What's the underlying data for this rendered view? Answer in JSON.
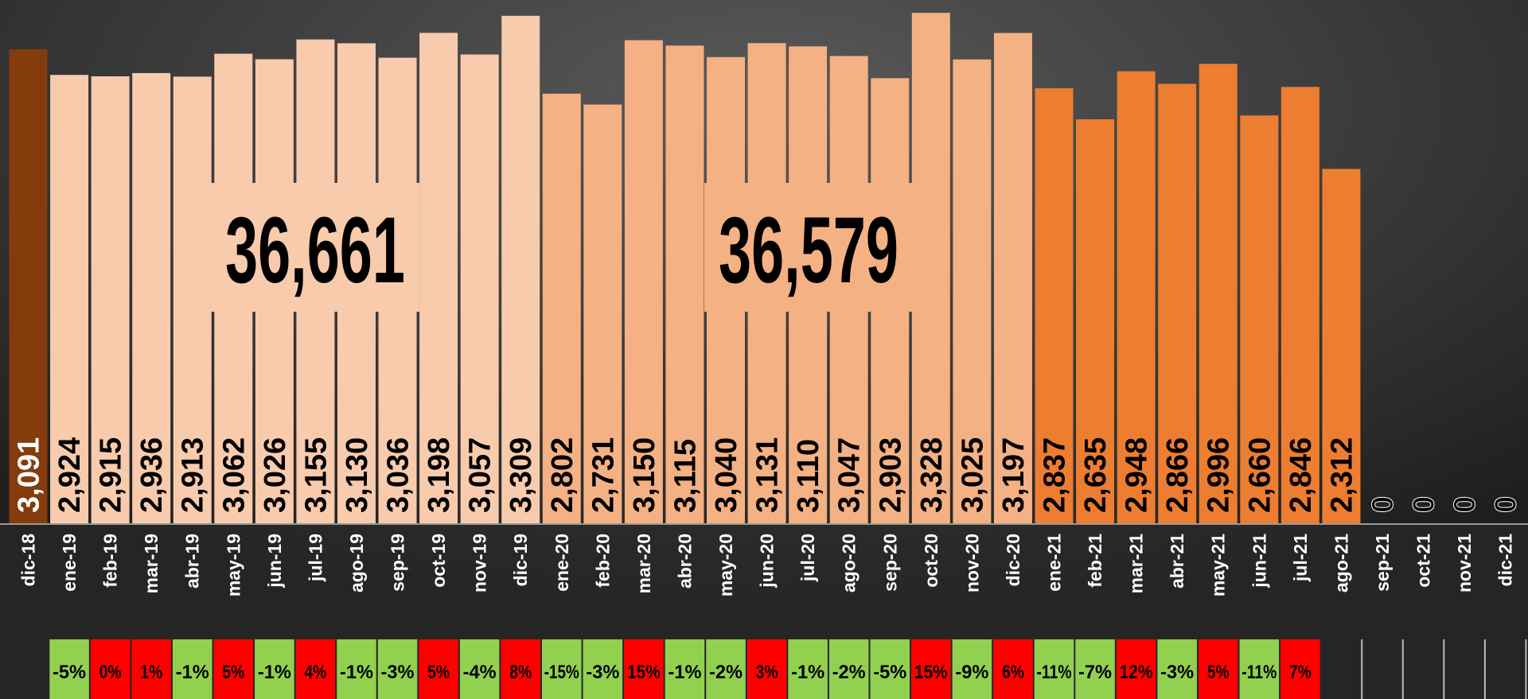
{
  "chart_data": {
    "type": "bar",
    "categories": [
      "dic-18",
      "ene-19",
      "feb-19",
      "mar-19",
      "abr-19",
      "may-19",
      "jun-19",
      "jul-19",
      "ago-19",
      "sep-19",
      "oct-19",
      "nov-19",
      "dic-19",
      "ene-20",
      "feb-20",
      "mar-20",
      "abr-20",
      "may-20",
      "jun-20",
      "jul-20",
      "ago-20",
      "sep-20",
      "oct-20",
      "nov-20",
      "dic-20",
      "ene-21",
      "feb-21",
      "mar-21",
      "abr-21",
      "may-21",
      "jun-21",
      "jul-21",
      "ago-21",
      "sep-21",
      "oct-21",
      "nov-21",
      "dic-21"
    ],
    "values": [
      3091,
      2924,
      2915,
      2936,
      2913,
      3062,
      3026,
      3155,
      3130,
      3036,
      3198,
      3057,
      3309,
      2802,
      2731,
      3150,
      3115,
      3040,
      3131,
      3110,
      3047,
      2903,
      3328,
      3025,
      3197,
      2837,
      2635,
      2948,
      2866,
      2996,
      2660,
      2846,
      2312,
      0,
      0,
      0,
      0
    ],
    "value_labels": [
      "3,091",
      "2,924",
      "2,915",
      "2,936",
      "2,913",
      "3,062",
      "3,026",
      "3,155",
      "3,130",
      "3,036",
      "3,198",
      "3,057",
      "3,309",
      "2,802",
      "2,731",
      "3,150",
      "3,115",
      "3,040",
      "3,131",
      "3,110",
      "3,047",
      "2,903",
      "3,328",
      "3,025",
      "3,197",
      "2,837",
      "2,635",
      "2,948",
      "2,866",
      "2,996",
      "2,660",
      "2,846",
      "2,312",
      "0",
      "0",
      "0",
      "0"
    ],
    "colors": [
      "#843c0c",
      "#f8cbad",
      "#f8cbad",
      "#f8cbad",
      "#f8cbad",
      "#f8cbad",
      "#f8cbad",
      "#f8cbad",
      "#f8cbad",
      "#f8cbad",
      "#f8cbad",
      "#f8cbad",
      "#f8cbad",
      "#f4b183",
      "#f4b183",
      "#f4b183",
      "#f4b183",
      "#f4b183",
      "#f4b183",
      "#f4b183",
      "#f4b183",
      "#f4b183",
      "#f4b183",
      "#f4b183",
      "#f4b183",
      "#ed7d31",
      "#ed7d31",
      "#ed7d31",
      "#ed7d31",
      "#ed7d31",
      "#ed7d31",
      "#ed7d31",
      "#ed7d31",
      "#ed7d31",
      "#ed7d31",
      "#ed7d31",
      "#ed7d31"
    ],
    "ylim": [
      0,
      3360
    ],
    "annotations": [
      "36,661",
      "36,579"
    ],
    "changes": {
      "values": [
        -5,
        0,
        1,
        -1,
        5,
        -1,
        4,
        -1,
        -3,
        5,
        -4,
        8,
        -15,
        -3,
        15,
        -1,
        -2,
        3,
        -1,
        -2,
        -5,
        15,
        -9,
        6,
        -11,
        -7,
        12,
        -3,
        5,
        -11,
        7
      ],
      "value_labels": [
        "-5%",
        "0%",
        "1%",
        "-1%",
        "5%",
        "-1%",
        "4%",
        "-1%",
        "-3%",
        "5%",
        "-4%",
        "8%",
        "-15%",
        "-3%",
        "15%",
        "-1%",
        "-2%",
        "3%",
        "-1%",
        "-2%",
        "-5%",
        "15%",
        "-9%",
        "6%",
        "-11%",
        "-7%",
        "12%",
        "-3%",
        "5%",
        "-11%",
        "7%"
      ],
      "negative_color": "#92d050",
      "positive_color": "#ff0000"
    }
  }
}
